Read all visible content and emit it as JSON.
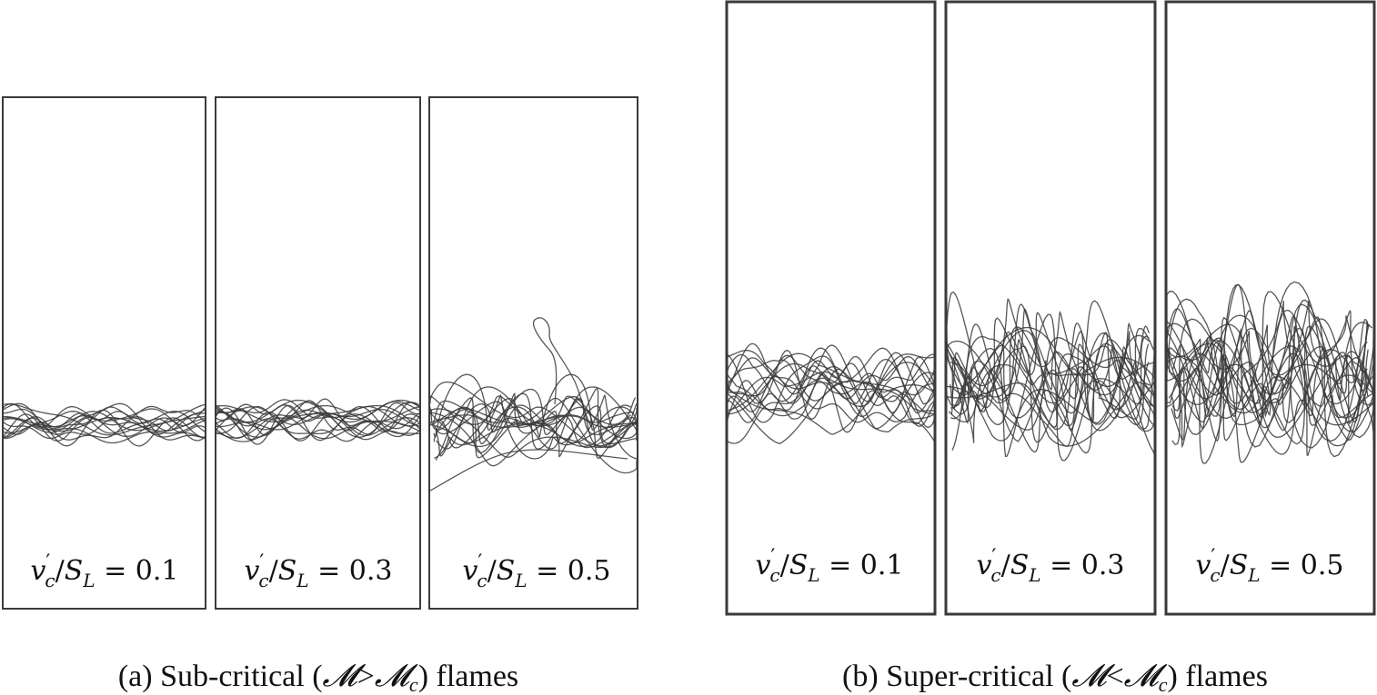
{
  "figure": {
    "groups": [
      {
        "id": "a",
        "caption": {
          "tag": "(a)",
          "text": "Sub-critical (",
          "symbol": "𝓜",
          "op": ">",
          "symbol2": "𝓜",
          "sub": "c",
          "tail": ") flames"
        },
        "panels": [
          {
            "label": {
              "var": "v",
              "prime": "′",
              "sub": "c",
              "slash": "/",
              "var2": "S",
              "sub2": "L",
              "eq": " = ",
              "value": "0.1"
            },
            "intensity": 0.1
          },
          {
            "label": {
              "var": "v",
              "prime": "′",
              "sub": "c",
              "slash": "/",
              "var2": "S",
              "sub2": "L",
              "eq": " = ",
              "value": "0.3"
            },
            "intensity": 0.3
          },
          {
            "label": {
              "var": "v",
              "prime": "′",
              "sub": "c",
              "slash": "/",
              "var2": "S",
              "sub2": "L",
              "eq": " = ",
              "value": "0.5"
            },
            "intensity": 0.5
          }
        ]
      },
      {
        "id": "b",
        "caption": {
          "tag": "(b)",
          "text": "Super-critical (",
          "symbol": "𝓜",
          "op": "<",
          "symbol2": "𝓜",
          "sub": "c",
          "tail": ") flames"
        },
        "panels": [
          {
            "label": {
              "var": "v",
              "prime": "′",
              "sub": "c",
              "slash": "/",
              "var2": "S",
              "sub2": "L",
              "eq": " = ",
              "value": "0.1"
            },
            "intensity": 0.1
          },
          {
            "label": {
              "var": "v",
              "prime": "′",
              "sub": "c",
              "slash": "/",
              "var2": "S",
              "sub2": "L",
              "eq": " = ",
              "value": "0.3"
            },
            "intensity": 0.3
          },
          {
            "label": {
              "var": "v",
              "prime": "′",
              "sub": "c",
              "slash": "/",
              "var2": "S",
              "sub2": "L",
              "eq": " = ",
              "value": "0.5"
            },
            "intensity": 0.5
          }
        ]
      }
    ],
    "colors": {
      "frame": "#3a3a3a",
      "front": "#3a3a3a",
      "text": "#111111"
    }
  }
}
